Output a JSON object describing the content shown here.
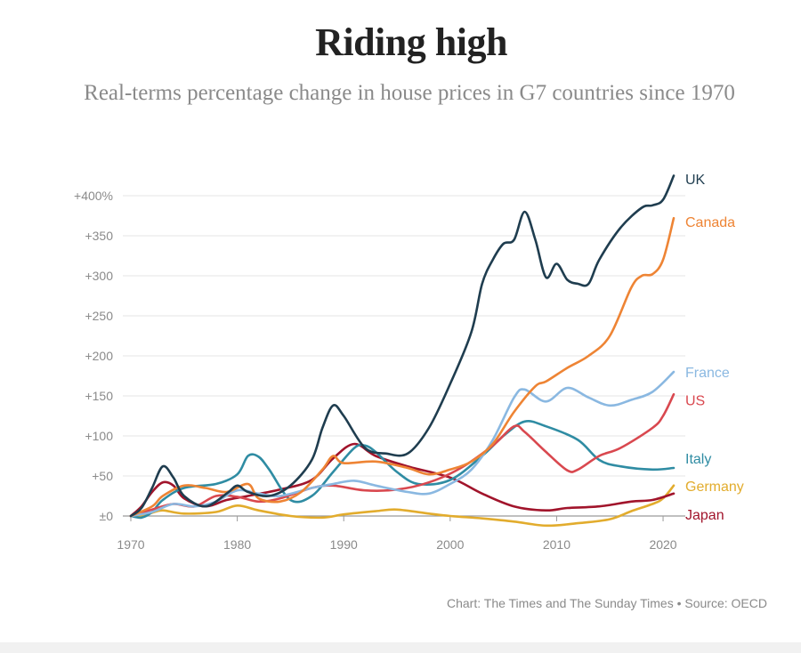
{
  "chart_data": {
    "type": "line",
    "title": "Riding high",
    "subtitle": "Real-terms percentage change in house prices in G7 countries since 1970",
    "source": "Chart: The Times and The Sunday Times • Source: OECD",
    "xlim": [
      1970,
      2021
    ],
    "ylim": [
      0,
      400
    ],
    "x_ticks": [
      1970,
      1980,
      1990,
      2000,
      2010,
      2020
    ],
    "x_tick_labels": [
      "1970",
      "1980",
      "1990",
      "2000",
      "2010",
      "2020"
    ],
    "y_ticks": [
      0,
      50,
      100,
      150,
      200,
      250,
      300,
      350,
      400
    ],
    "y_tick_labels": [
      "±0",
      "+50",
      "+100",
      "+150",
      "+200",
      "+250",
      "+300",
      "+350",
      "+400%"
    ],
    "grid": "horizontal",
    "legend": "direct labels at right",
    "series": [
      {
        "name": "Germany",
        "color": "#e2ac2d",
        "label_y": 38,
        "points": [
          [
            1970,
            0
          ],
          [
            1971,
            0
          ],
          [
            1972,
            4
          ],
          [
            1973,
            7
          ],
          [
            1975,
            3
          ],
          [
            1978,
            5
          ],
          [
            1980,
            13
          ],
          [
            1982,
            7
          ],
          [
            1985,
            0
          ],
          [
            1988,
            -2
          ],
          [
            1990,
            2
          ],
          [
            1993,
            6
          ],
          [
            1995,
            8
          ],
          [
            1998,
            3
          ],
          [
            2000,
            0
          ],
          [
            2003,
            -3
          ],
          [
            2006,
            -7
          ],
          [
            2009,
            -12
          ],
          [
            2012,
            -9
          ],
          [
            2015,
            -4
          ],
          [
            2017,
            6
          ],
          [
            2019,
            15
          ],
          [
            2020,
            22
          ],
          [
            2021,
            38
          ]
        ]
      },
      {
        "name": "Japan",
        "color": "#a1142b",
        "label_y": 2,
        "points": [
          [
            1970,
            0
          ],
          [
            1971,
            12
          ],
          [
            1972,
            30
          ],
          [
            1973,
            42
          ],
          [
            1974,
            38
          ],
          [
            1975,
            22
          ],
          [
            1977,
            12
          ],
          [
            1979,
            20
          ],
          [
            1981,
            25
          ],
          [
            1984,
            33
          ],
          [
            1987,
            45
          ],
          [
            1989,
            72
          ],
          [
            1991,
            90
          ],
          [
            1993,
            75
          ],
          [
            1996,
            62
          ],
          [
            2000,
            48
          ],
          [
            2003,
            28
          ],
          [
            2006,
            12
          ],
          [
            2009,
            7
          ],
          [
            2011,
            10
          ],
          [
            2014,
            12
          ],
          [
            2017,
            18
          ],
          [
            2019,
            20
          ],
          [
            2021,
            28
          ]
        ]
      },
      {
        "name": "Italy",
        "color": "#2f8ca3",
        "label_y": 72,
        "points": [
          [
            1970,
            0
          ],
          [
            1971,
            -2
          ],
          [
            1972,
            5
          ],
          [
            1973,
            20
          ],
          [
            1975,
            35
          ],
          [
            1978,
            40
          ],
          [
            1980,
            52
          ],
          [
            1981,
            75
          ],
          [
            1982,
            74
          ],
          [
            1983,
            58
          ],
          [
            1985,
            20
          ],
          [
            1987,
            25
          ],
          [
            1989,
            55
          ],
          [
            1991,
            85
          ],
          [
            1992,
            88
          ],
          [
            1993,
            80
          ],
          [
            1995,
            55
          ],
          [
            1997,
            40
          ],
          [
            2000,
            45
          ],
          [
            2003,
            75
          ],
          [
            2005,
            100
          ],
          [
            2007,
            118
          ],
          [
            2009,
            112
          ],
          [
            2012,
            95
          ],
          [
            2014,
            70
          ],
          [
            2016,
            62
          ],
          [
            2019,
            58
          ],
          [
            2021,
            60
          ]
        ]
      },
      {
        "name": "US",
        "color": "#d9484f",
        "label_y": 145,
        "points": [
          [
            1970,
            0
          ],
          [
            1972,
            8
          ],
          [
            1974,
            15
          ],
          [
            1976,
            12
          ],
          [
            1978,
            25
          ],
          [
            1980,
            24
          ],
          [
            1982,
            18
          ],
          [
            1984,
            22
          ],
          [
            1987,
            35
          ],
          [
            1989,
            38
          ],
          [
            1992,
            32
          ],
          [
            1995,
            33
          ],
          [
            1998,
            42
          ],
          [
            2001,
            60
          ],
          [
            2004,
            88
          ],
          [
            2006,
            112
          ],
          [
            2007,
            105
          ],
          [
            2009,
            80
          ],
          [
            2011,
            57
          ],
          [
            2012,
            58
          ],
          [
            2014,
            75
          ],
          [
            2016,
            85
          ],
          [
            2019,
            110
          ],
          [
            2020,
            125
          ],
          [
            2021,
            152
          ]
        ]
      },
      {
        "name": "France",
        "color": "#8ab8e1",
        "label_y": 180,
        "points": [
          [
            1970,
            0
          ],
          [
            1972,
            5
          ],
          [
            1974,
            15
          ],
          [
            1976,
            12
          ],
          [
            1978,
            18
          ],
          [
            1980,
            32
          ],
          [
            1982,
            28
          ],
          [
            1984,
            25
          ],
          [
            1987,
            35
          ],
          [
            1989,
            40
          ],
          [
            1991,
            44
          ],
          [
            1993,
            38
          ],
          [
            1996,
            30
          ],
          [
            1998,
            28
          ],
          [
            2000,
            40
          ],
          [
            2002,
            58
          ],
          [
            2004,
            95
          ],
          [
            2006,
            148
          ],
          [
            2007,
            158
          ],
          [
            2009,
            143
          ],
          [
            2011,
            160
          ],
          [
            2013,
            148
          ],
          [
            2015,
            138
          ],
          [
            2017,
            145
          ],
          [
            2019,
            155
          ],
          [
            2021,
            180
          ]
        ]
      },
      {
        "name": "Canada",
        "color": "#ee8434",
        "label_y": 368,
        "points": [
          [
            1970,
            0
          ],
          [
            1972,
            12
          ],
          [
            1973,
            25
          ],
          [
            1975,
            38
          ],
          [
            1977,
            35
          ],
          [
            1979,
            30
          ],
          [
            1981,
            40
          ],
          [
            1982,
            22
          ],
          [
            1984,
            18
          ],
          [
            1986,
            30
          ],
          [
            1988,
            58
          ],
          [
            1989,
            75
          ],
          [
            1990,
            66
          ],
          [
            1993,
            68
          ],
          [
            1996,
            60
          ],
          [
            1998,
            52
          ],
          [
            2000,
            58
          ],
          [
            2002,
            68
          ],
          [
            2004,
            90
          ],
          [
            2006,
            130
          ],
          [
            2008,
            162
          ],
          [
            2009,
            168
          ],
          [
            2011,
            185
          ],
          [
            2013,
            200
          ],
          [
            2015,
            225
          ],
          [
            2017,
            285
          ],
          [
            2018,
            300
          ],
          [
            2019,
            302
          ],
          [
            2020,
            320
          ],
          [
            2021,
            372
          ]
        ]
      },
      {
        "name": "UK",
        "color": "#1f3d4f",
        "label_y": 421,
        "points": [
          [
            1970,
            0
          ],
          [
            1971,
            10
          ],
          [
            1972,
            35
          ],
          [
            1973,
            62
          ],
          [
            1974,
            48
          ],
          [
            1975,
            25
          ],
          [
            1977,
            12
          ],
          [
            1979,
            28
          ],
          [
            1980,
            38
          ],
          [
            1981,
            30
          ],
          [
            1983,
            25
          ],
          [
            1985,
            38
          ],
          [
            1987,
            70
          ],
          [
            1988,
            110
          ],
          [
            1989,
            138
          ],
          [
            1990,
            125
          ],
          [
            1992,
            85
          ],
          [
            1994,
            78
          ],
          [
            1996,
            78
          ],
          [
            1998,
            110
          ],
          [
            2000,
            165
          ],
          [
            2002,
            230
          ],
          [
            2003,
            290
          ],
          [
            2004,
            320
          ],
          [
            2005,
            340
          ],
          [
            2006,
            345
          ],
          [
            2007,
            380
          ],
          [
            2008,
            345
          ],
          [
            2009,
            298
          ],
          [
            2010,
            315
          ],
          [
            2011,
            295
          ],
          [
            2012,
            290
          ],
          [
            2013,
            290
          ],
          [
            2014,
            320
          ],
          [
            2016,
            360
          ],
          [
            2018,
            385
          ],
          [
            2019,
            388
          ],
          [
            2020,
            395
          ],
          [
            2021,
            425
          ]
        ]
      }
    ]
  }
}
